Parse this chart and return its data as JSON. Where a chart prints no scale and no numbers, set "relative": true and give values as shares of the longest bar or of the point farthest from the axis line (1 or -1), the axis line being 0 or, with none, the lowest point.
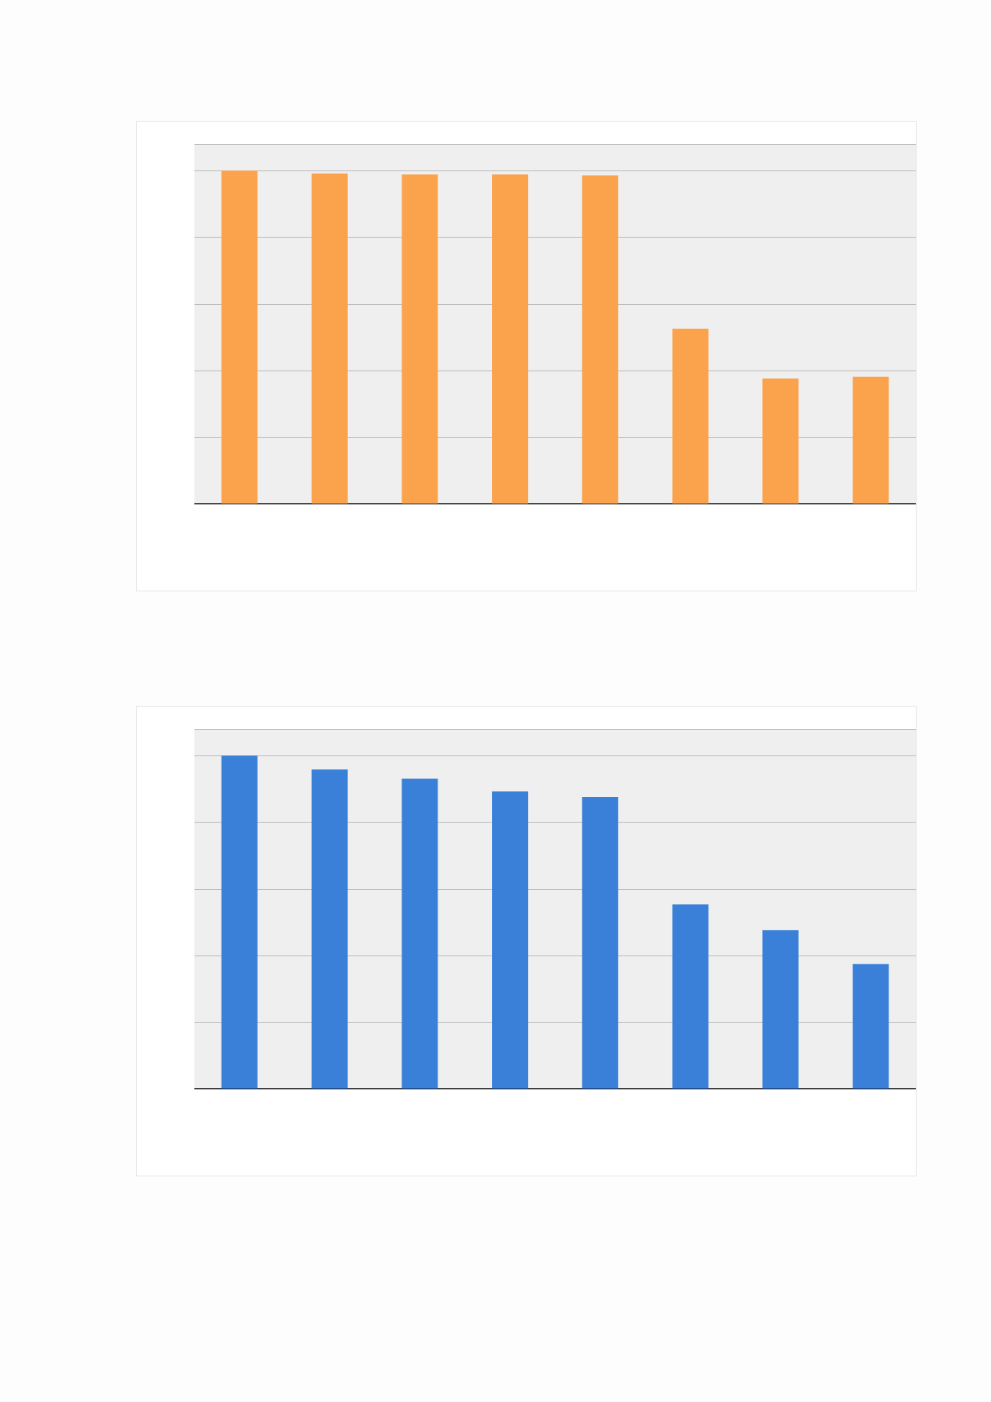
{
  "chart_data": [
    {
      "type": "bar",
      "categories": [
        null,
        null,
        null,
        null,
        null,
        null,
        null,
        null
      ],
      "relative": true,
      "grid": "y",
      "color": "#fba34c",
      "values": [
        1,
        0.992,
        0.989,
        0.989,
        0.986,
        0.526,
        0.377,
        0.382
      ]
    },
    {
      "type": "bar",
      "categories": [
        null,
        null,
        null,
        null,
        null,
        null,
        null,
        null
      ],
      "relative": true,
      "grid": "y",
      "color": "#3a80d8",
      "values": [
        1,
        0.959,
        0.931,
        0.893,
        0.876,
        0.554,
        0.477,
        0.375
      ]
    }
  ]
}
